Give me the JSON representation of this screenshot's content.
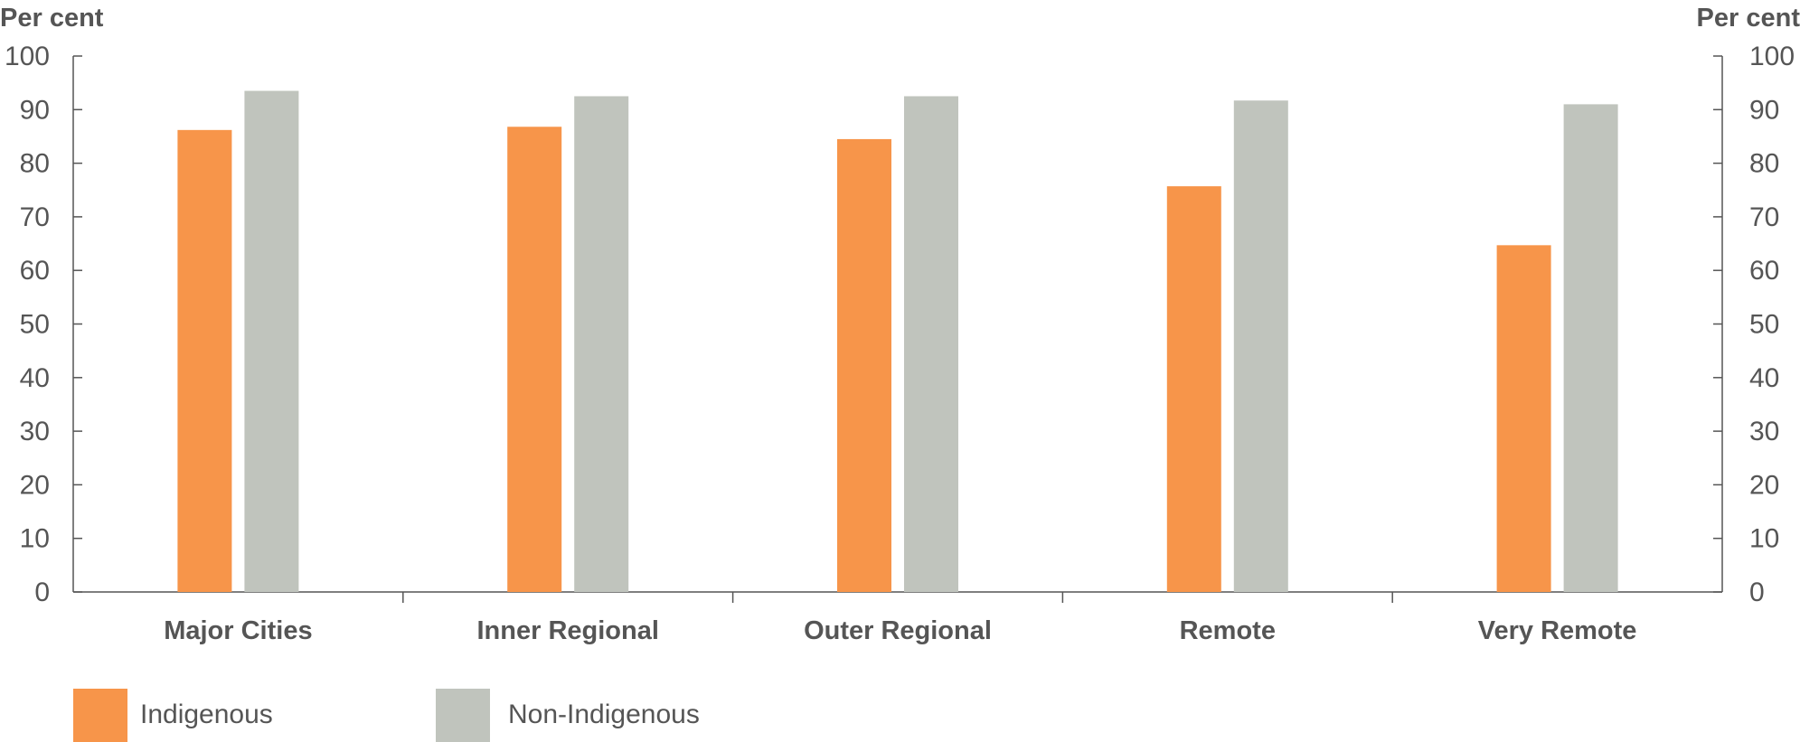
{
  "chart_data": {
    "type": "bar",
    "ylabel_left": "Per cent",
    "ylabel_right": "Per cent",
    "ylim": [
      0,
      100
    ],
    "yticks": [
      0,
      10,
      20,
      30,
      40,
      50,
      60,
      70,
      80,
      90,
      100
    ],
    "categories": [
      "Major Cities",
      "Inner  Regional",
      "Outer  Regional",
      "Remote",
      "Very Remote"
    ],
    "series": [
      {
        "name": "Indigenous",
        "color": "#f7954a",
        "values": [
          86.2,
          86.8,
          84.5,
          75.7,
          64.7
        ]
      },
      {
        "name": "Non-Indigenous",
        "color": "#c0c4bd",
        "values": [
          93.5,
          92.5,
          92.5,
          91.7,
          91.0
        ]
      }
    ],
    "legend_position": "bottom-left",
    "grid": false
  }
}
